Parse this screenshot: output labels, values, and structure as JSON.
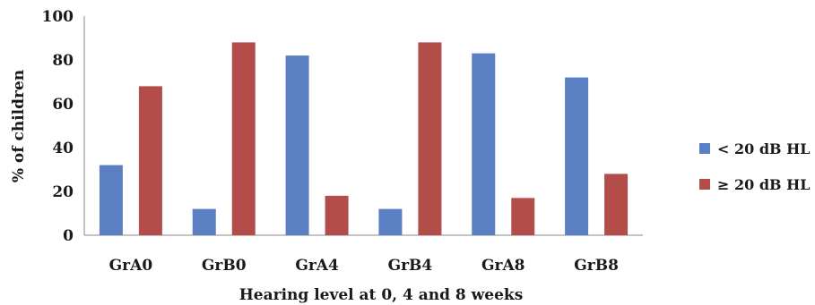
{
  "chart_data": {
    "type": "bar",
    "title": "",
    "xlabel": "Hearing level at 0, 4 and 8 weeks",
    "ylabel": "% of children",
    "ylim": [
      0,
      100
    ],
    "yticks": [
      0,
      20,
      40,
      60,
      80,
      100
    ],
    "categories": [
      "GrA0",
      "GrB0",
      "GrA4",
      "GrB4",
      "GrA8",
      "GrB8"
    ],
    "series": [
      {
        "name": "< 20 dB HL",
        "color": "#5b7fc3",
        "values": [
          32,
          12,
          82,
          12,
          83,
          72
        ]
      },
      {
        "name": "≥ 20 dB HL",
        "color": "#b24d49",
        "values": [
          68,
          88,
          18,
          88,
          17,
          28
        ]
      }
    ],
    "grid": false,
    "legend_position": "right"
  }
}
